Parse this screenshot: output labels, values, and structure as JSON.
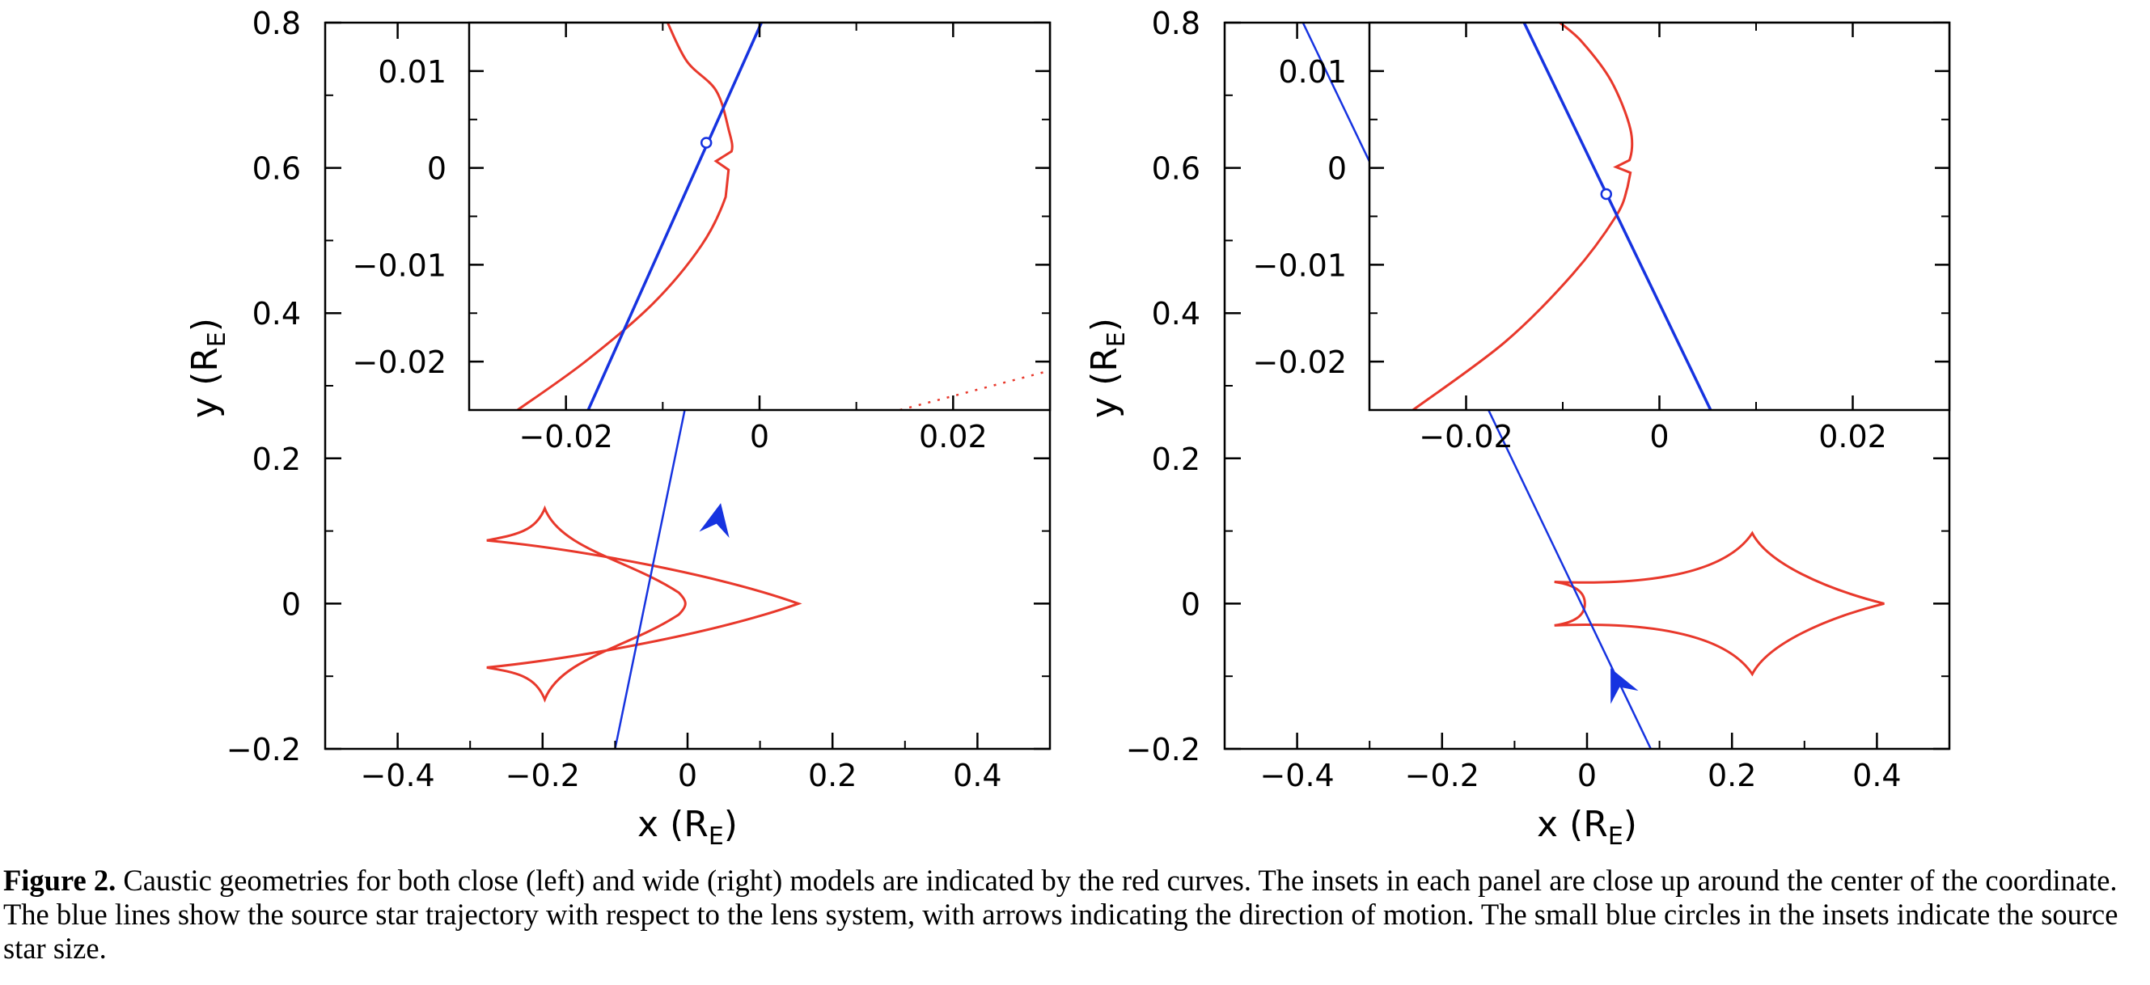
{
  "figure": {
    "caption_label": "Figure 2.",
    "caption_text": " Caustic geometries for both close (left) and wide (right) models are indicated by the red curves. The insets in each panel are close up around the center of the coordinate. The blue lines show the source star trajectory with respect to the lens system, with arrows indicating the direction of motion. The small blue circles in the insets indicate the source star size.",
    "colors": {
      "caustic": "#e8382b",
      "trajectory": "#1633e0",
      "axis": "#000000"
    }
  },
  "chart_data": [
    {
      "type": "line",
      "panel": "left",
      "model": "close",
      "title": "",
      "xlabel": "x (R",
      "xlabel_sub": "E",
      "xlabel_close": ")",
      "ylabel": "y (R",
      "ylabel_sub": "E",
      "ylabel_close": ")",
      "xlim": [
        -0.5,
        0.5
      ],
      "ylim": [
        -0.2,
        0.8
      ],
      "xticks": [
        -0.4,
        -0.2,
        0,
        0.2,
        0.4
      ],
      "xtick_labels": [
        "−0.4",
        "−0.2",
        "0",
        "0.2",
        "0.4"
      ],
      "yticks": [
        -0.2,
        0,
        0.2,
        0.4,
        0.6,
        0.8
      ],
      "ytick_labels": [
        "−0.2",
        "0",
        "0.2",
        "0.4",
        "0.6",
        "0.8"
      ],
      "caustic": {
        "kind": "three-cusp arrowhead",
        "right_cusp": [
          0.153,
          0.0
        ],
        "left_cusp_tip": [
          -0.003,
          0.0
        ],
        "upper_wing": [
          [
            -0.197,
            0.131
          ],
          [
            -0.277,
            0.087
          ]
        ],
        "lower_wing": [
          [
            -0.197,
            -0.132
          ],
          [
            -0.277,
            -0.088
          ]
        ]
      },
      "trajectory": {
        "start": [
          -0.1,
          -0.2
        ],
        "end": [
          0.106,
          0.8
        ],
        "arrow_at": [
          0.04,
          0.11
        ],
        "direction": "upward"
      },
      "inset": {
        "xlim": [
          -0.03,
          0.03
        ],
        "ylim": [
          -0.025,
          0.015
        ],
        "xticks": [
          -0.02,
          0,
          0.02
        ],
        "xtick_labels": [
          "−0.02",
          "0",
          "0.02"
        ],
        "yticks": [
          -0.02,
          -0.01,
          0,
          0.01
        ],
        "ytick_labels": [
          "−0.02",
          "−0.01",
          "0",
          "0.01"
        ],
        "trajectory": {
          "start": [
            -0.0177,
            -0.025
          ],
          "end": [
            0.0002,
            0.015
          ]
        },
        "source_circle": [
          -0.0055,
          0.0026
        ],
        "caustic_cusp_tip": [
          -0.0037,
          0.0
        ],
        "caustic_points": [
          [
            -0.025,
            -0.025
          ],
          [
            -0.018,
            -0.02
          ],
          [
            -0.011,
            -0.014
          ],
          [
            -0.006,
            -0.008
          ],
          [
            -0.0035,
            -0.003
          ],
          [
            -0.0032,
            -0.0002
          ],
          [
            -0.0045,
            0.0007
          ],
          [
            -0.0029,
            0.0017
          ],
          [
            -0.0032,
            0.004
          ],
          [
            -0.0045,
            0.008
          ],
          [
            -0.0075,
            0.011
          ],
          [
            -0.0095,
            0.015
          ]
        ],
        "dotted_curve": [
          [
            0.0145,
            -0.025
          ],
          [
            0.0305,
            -0.0208
          ]
        ]
      }
    },
    {
      "type": "line",
      "panel": "right",
      "model": "wide",
      "title": "",
      "xlabel": "x (R",
      "xlabel_sub": "E",
      "xlabel_close": ")",
      "ylabel": "y (R",
      "ylabel_sub": "E",
      "ylabel_close": ")",
      "xlim": [
        -0.5,
        0.5
      ],
      "ylim": [
        -0.2,
        0.8
      ],
      "xticks": [
        -0.4,
        -0.2,
        0,
        0.2,
        0.4
      ],
      "xtick_labels": [
        "−0.4",
        "−0.2",
        "0",
        "0.2",
        "0.4"
      ],
      "yticks": [
        -0.2,
        0,
        0.2,
        0.4,
        0.6,
        0.8
      ],
      "ytick_labels": [
        "−0.2",
        "0",
        "0.2",
        "0.4",
        "0.6",
        "0.8"
      ],
      "caustic": {
        "kind": "four-cusp astroid",
        "right_cusp": [
          0.41,
          0.0
        ],
        "top_cusp": [
          0.228,
          0.097
        ],
        "bottom_cusp": [
          0.228,
          -0.097
        ],
        "left_upper_cusp": [
          -0.045,
          0.03
        ],
        "left_lower_cusp": [
          -0.045,
          -0.03
        ],
        "left_tip": [
          -0.003,
          0.0
        ]
      },
      "trajectory": {
        "start": [
          0.088,
          -0.2
        ],
        "end": [
          -0.392,
          0.8
        ],
        "arrow_at": [
          0.045,
          -0.115
        ],
        "direction": "upward"
      },
      "inset": {
        "xlim": [
          -0.03,
          0.03
        ],
        "ylim": [
          -0.025,
          0.015
        ],
        "xticks": [
          -0.02,
          0,
          0.02
        ],
        "xtick_labels": [
          "−0.02",
          "0",
          "0.02"
        ],
        "yticks": [
          -0.02,
          -0.01,
          0,
          0.01
        ],
        "ytick_labels": [
          "−0.02",
          "−0.01",
          "0",
          "0.01"
        ],
        "trajectory": {
          "start": [
            0.0053,
            -0.025
          ],
          "end": [
            -0.014,
            0.015
          ]
        },
        "source_circle": [
          -0.0055,
          -0.0027
        ],
        "caustic_cusp_tip": [
          -0.0045,
          0.0
        ],
        "caustic_points": [
          [
            -0.0255,
            -0.025
          ],
          [
            -0.016,
            -0.018
          ],
          [
            -0.009,
            -0.011
          ],
          [
            -0.0045,
            -0.005
          ],
          [
            -0.0033,
            -0.002
          ],
          [
            -0.003,
            -0.0005
          ],
          [
            -0.0045,
            0.0001
          ],
          [
            -0.0031,
            0.0008
          ],
          [
            -0.003,
            0.004
          ],
          [
            -0.005,
            0.009
          ],
          [
            -0.008,
            0.013
          ],
          [
            -0.0103,
            0.015
          ]
        ]
      }
    }
  ]
}
